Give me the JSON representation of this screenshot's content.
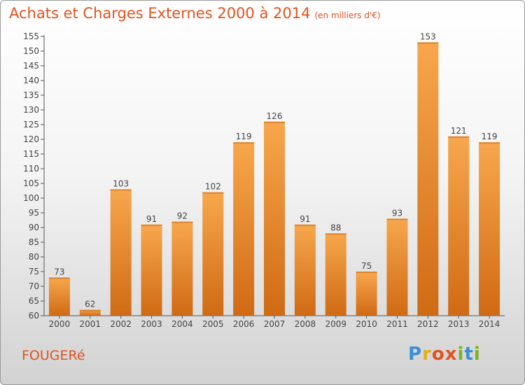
{
  "title": "Achats et Charges Externes 2000 à 2014",
  "unit": "(en milliers d'€)",
  "location": "FOUGERé",
  "logo": {
    "name": "Proxiti",
    "letters": [
      "P",
      "r",
      "o",
      "x",
      "i",
      "t",
      "i"
    ]
  },
  "colors": {
    "title": "#e0531f",
    "bar_top": "#f7a74d",
    "bar_bottom": "#d06a14",
    "axis": "#555555"
  },
  "chart_data": {
    "type": "bar",
    "title": "Achats et Charges Externes 2000 à 2014",
    "categories": [
      "2000",
      "2001",
      "2002",
      "2003",
      "2004",
      "2005",
      "2006",
      "2007",
      "2008",
      "2009",
      "2010",
      "2011",
      "2012",
      "2013",
      "2014"
    ],
    "values": [
      73,
      62,
      103,
      91,
      92,
      102,
      119,
      126,
      91,
      88,
      75,
      93,
      153,
      121,
      119
    ],
    "ylim": [
      60,
      155
    ],
    "yticks": [
      60,
      65,
      70,
      75,
      80,
      85,
      90,
      95,
      100,
      105,
      110,
      115,
      120,
      125,
      130,
      135,
      140,
      145,
      150,
      155
    ],
    "grid": false,
    "data_labels": true
  }
}
